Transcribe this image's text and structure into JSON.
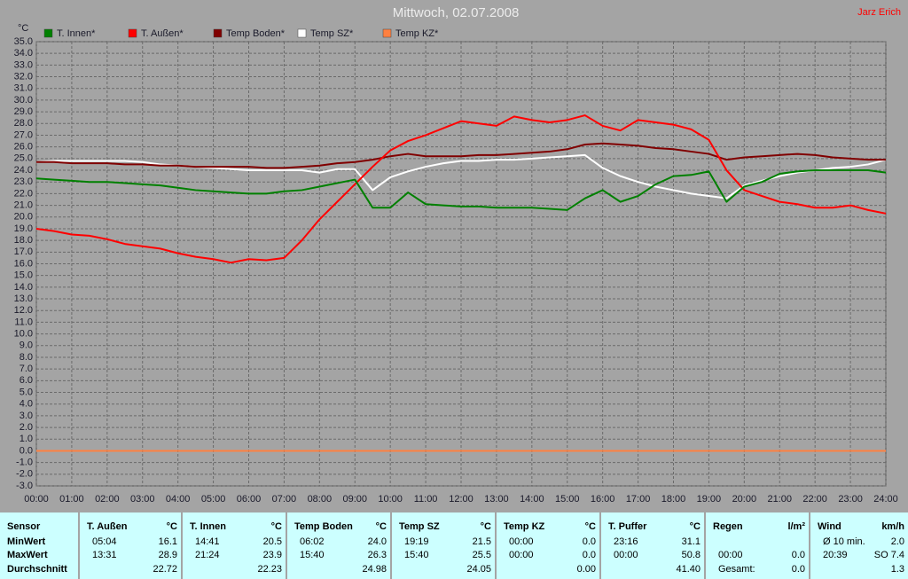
{
  "chart_data": {
    "type": "line",
    "title": "Mittwoch, 02.07.2008",
    "annotation": "Jarz Erich",
    "y_label": "°C",
    "grid": true,
    "x": [
      0,
      0.5,
      1,
      1.5,
      2,
      2.5,
      3,
      3.5,
      4,
      4.5,
      5,
      5.5,
      6,
      6.5,
      7,
      7.5,
      8,
      8.5,
      9,
      9.5,
      10,
      10.5,
      11,
      11.5,
      12,
      12.5,
      13,
      13.5,
      14,
      14.5,
      15,
      15.5,
      16,
      16.5,
      17,
      17.5,
      18,
      18.5,
      19,
      19.5,
      20,
      20.5,
      21,
      21.5,
      22,
      22.5,
      23,
      23.5,
      24
    ],
    "xlim": [
      0,
      24
    ],
    "xticks": [
      {
        "value": 0,
        "label": "00:00"
      },
      {
        "value": 1,
        "label": "01:00"
      },
      {
        "value": 2,
        "label": "02:00"
      },
      {
        "value": 3,
        "label": "03:00"
      },
      {
        "value": 4,
        "label": "04:00"
      },
      {
        "value": 5,
        "label": "05:00"
      },
      {
        "value": 6,
        "label": "06:00"
      },
      {
        "value": 7,
        "label": "07:00"
      },
      {
        "value": 8,
        "label": "08:00"
      },
      {
        "value": 9,
        "label": "09:00"
      },
      {
        "value": 10,
        "label": "10:00"
      },
      {
        "value": 11,
        "label": "11:00"
      },
      {
        "value": 12,
        "label": "12:00"
      },
      {
        "value": 13,
        "label": "13:00"
      },
      {
        "value": 14,
        "label": "14:00"
      },
      {
        "value": 15,
        "label": "15:00"
      },
      {
        "value": 16,
        "label": "16:00"
      },
      {
        "value": 17,
        "label": "17:00"
      },
      {
        "value": 18,
        "label": "18:00"
      },
      {
        "value": 19,
        "label": "19:00"
      },
      {
        "value": 20,
        "label": "20:00"
      },
      {
        "value": 21,
        "label": "21:00"
      },
      {
        "value": 22,
        "label": "22:00"
      },
      {
        "value": 23,
        "label": "23:00"
      },
      {
        "value": 24,
        "label": "24:00"
      }
    ],
    "ylim": [
      -3,
      35
    ],
    "yticks": [
      {
        "value": -3,
        "label": "-3.0"
      },
      {
        "value": -2,
        "label": "-2.0"
      },
      {
        "value": -1,
        "label": "-1.0"
      },
      {
        "value": 0,
        "label": "0.0"
      },
      {
        "value": 1,
        "label": "1.0"
      },
      {
        "value": 2,
        "label": "2.0"
      },
      {
        "value": 3,
        "label": "3.0"
      },
      {
        "value": 4,
        "label": "4.0"
      },
      {
        "value": 5,
        "label": "5.0"
      },
      {
        "value": 6,
        "label": "6.0"
      },
      {
        "value": 7,
        "label": "7.0"
      },
      {
        "value": 8,
        "label": "8.0"
      },
      {
        "value": 9,
        "label": "9.0"
      },
      {
        "value": 10,
        "label": "10.0"
      },
      {
        "value": 11,
        "label": "11.0"
      },
      {
        "value": 12,
        "label": "12.0"
      },
      {
        "value": 13,
        "label": "13.0"
      },
      {
        "value": 14,
        "label": "14.0"
      },
      {
        "value": 15,
        "label": "15.0"
      },
      {
        "value": 16,
        "label": "16.0"
      },
      {
        "value": 17,
        "label": "17.0"
      },
      {
        "value": 18,
        "label": "18.0"
      },
      {
        "value": 19,
        "label": "19.0"
      },
      {
        "value": 20,
        "label": "20.0"
      },
      {
        "value": 21,
        "label": "21.0"
      },
      {
        "value": 22,
        "label": "22.0"
      },
      {
        "value": 23,
        "label": "23.0"
      },
      {
        "value": 24,
        "label": "24.0"
      },
      {
        "value": 25,
        "label": "25.0"
      },
      {
        "value": 26,
        "label": "26.0"
      },
      {
        "value": 27,
        "label": "27.0"
      },
      {
        "value": 28,
        "label": "28.0"
      },
      {
        "value": 29,
        "label": "29.0"
      },
      {
        "value": 30,
        "label": "30.0"
      },
      {
        "value": 31,
        "label": "31.0"
      },
      {
        "value": 32,
        "label": "32.0"
      },
      {
        "value": 33,
        "label": "33.0"
      },
      {
        "value": 34,
        "label": "34.0"
      },
      {
        "value": 35,
        "label": "35.0"
      }
    ],
    "series": [
      {
        "name": "T. Innen*",
        "color": "#008000",
        "values": [
          23.3,
          23.2,
          23.1,
          23.0,
          23.0,
          22.9,
          22.8,
          22.7,
          22.5,
          22.3,
          22.2,
          22.1,
          22.0,
          22.0,
          22.2,
          22.3,
          22.6,
          22.9,
          23.2,
          20.8,
          20.8,
          22.1,
          21.1,
          21.0,
          20.9,
          20.9,
          20.8,
          20.8,
          20.8,
          20.7,
          20.6,
          21.6,
          22.3,
          21.3,
          21.8,
          22.8,
          23.5,
          23.6,
          23.9,
          21.3,
          22.6,
          23.0,
          23.7,
          23.9,
          24.0,
          24.0,
          24.0,
          24.0,
          23.8
        ]
      },
      {
        "name": "T. Außen*",
        "color": "#ff0000",
        "values": [
          19.0,
          18.8,
          18.5,
          18.4,
          18.1,
          17.7,
          17.5,
          17.3,
          16.9,
          16.6,
          16.4,
          16.1,
          16.4,
          16.3,
          16.5,
          18.0,
          19.8,
          21.3,
          22.8,
          24.3,
          25.7,
          26.5,
          27.0,
          27.6,
          28.2,
          28.0,
          27.8,
          28.6,
          28.3,
          28.1,
          28.3,
          28.7,
          27.8,
          27.4,
          28.3,
          28.1,
          27.9,
          27.5,
          26.6,
          24.0,
          22.3,
          21.8,
          21.3,
          21.1,
          20.8,
          20.8,
          21.0,
          20.6,
          20.3
        ]
      },
      {
        "name": "Temp Boden*",
        "color": "#800000",
        "values": [
          24.7,
          24.7,
          24.6,
          24.6,
          24.6,
          24.5,
          24.5,
          24.4,
          24.4,
          24.3,
          24.3,
          24.3,
          24.3,
          24.2,
          24.2,
          24.3,
          24.4,
          24.6,
          24.7,
          24.9,
          25.2,
          25.4,
          25.2,
          25.2,
          25.2,
          25.3,
          25.3,
          25.4,
          25.5,
          25.6,
          25.8,
          26.2,
          26.3,
          26.2,
          26.1,
          25.9,
          25.8,
          25.6,
          25.4,
          24.9,
          25.1,
          25.2,
          25.3,
          25.4,
          25.3,
          25.1,
          25.0,
          24.9,
          24.9
        ]
      },
      {
        "name": "Temp SZ*",
        "color": "#ffffff",
        "values": [
          24.7,
          24.8,
          24.8,
          24.8,
          24.8,
          24.8,
          24.7,
          24.5,
          24.4,
          24.3,
          24.2,
          24.1,
          24.0,
          24.0,
          24.0,
          24.0,
          23.8,
          24.1,
          24.1,
          22.3,
          23.4,
          23.9,
          24.3,
          24.6,
          24.8,
          24.8,
          24.9,
          24.9,
          25.0,
          25.1,
          25.2,
          25.3,
          24.2,
          23.5,
          23.0,
          22.6,
          22.3,
          22.0,
          21.8,
          21.6,
          22.7,
          23.1,
          23.5,
          23.8,
          24.0,
          24.2,
          24.3,
          24.5,
          24.9
        ]
      },
      {
        "name": "Temp KZ*",
        "color": "#ff8040",
        "values": [
          0,
          0,
          0,
          0,
          0,
          0,
          0,
          0,
          0,
          0,
          0,
          0,
          0,
          0,
          0,
          0,
          0,
          0,
          0,
          0,
          0,
          0,
          0,
          0,
          0,
          0,
          0,
          0,
          0,
          0,
          0,
          0,
          0,
          0,
          0,
          0,
          0,
          0,
          0,
          0,
          0,
          0,
          0,
          0,
          0,
          0,
          0,
          0,
          0
        ]
      }
    ]
  },
  "table": {
    "groups": [
      {
        "header": [
          "Sensor"
        ],
        "rows": [
          [
            "MinWert"
          ],
          [
            "MaxWert"
          ],
          [
            "Durchschnitt"
          ]
        ]
      },
      {
        "header": [
          "T. Außen",
          "°C"
        ],
        "rows": [
          [
            "05:04",
            "16.1"
          ],
          [
            "13:31",
            "28.9"
          ],
          [
            null,
            "22.72"
          ]
        ]
      },
      {
        "header": [
          "T. Innen",
          "°C"
        ],
        "rows": [
          [
            "14:41",
            "20.5"
          ],
          [
            "21:24",
            "23.9"
          ],
          [
            null,
            "22.23"
          ]
        ]
      },
      {
        "header": [
          "Temp Boden",
          "°C"
        ],
        "rows": [
          [
            "06:02",
            "24.0"
          ],
          [
            "15:40",
            "26.3"
          ],
          [
            null,
            "24.98"
          ]
        ]
      },
      {
        "header": [
          "Temp SZ",
          "°C"
        ],
        "rows": [
          [
            "19:19",
            "21.5"
          ],
          [
            "15:40",
            "25.5"
          ],
          [
            null,
            "24.05"
          ]
        ]
      },
      {
        "header": [
          "Temp KZ",
          "°C"
        ],
        "rows": [
          [
            "00:00",
            "0.0"
          ],
          [
            "00:00",
            "0.0"
          ],
          [
            null,
            "0.00"
          ]
        ]
      },
      {
        "header": [
          "T. Puffer",
          "°C"
        ],
        "rows": [
          [
            "23:16",
            "31.1"
          ],
          [
            "00:00",
            "50.8"
          ],
          [
            null,
            "41.40"
          ]
        ]
      },
      {
        "header": [
          "Regen",
          "l/m²"
        ],
        "rows": [
          [
            null,
            null
          ],
          [
            "00:00",
            "0.0"
          ],
          [
            "Gesamt:",
            "0.0"
          ]
        ]
      },
      {
        "header": [
          "Wind",
          "km/h"
        ],
        "rows": [
          [
            "Ø 10 min.",
            "2.0"
          ],
          [
            "20:39",
            "SO 7.4"
          ],
          [
            null,
            "1.3"
          ]
        ]
      }
    ]
  }
}
